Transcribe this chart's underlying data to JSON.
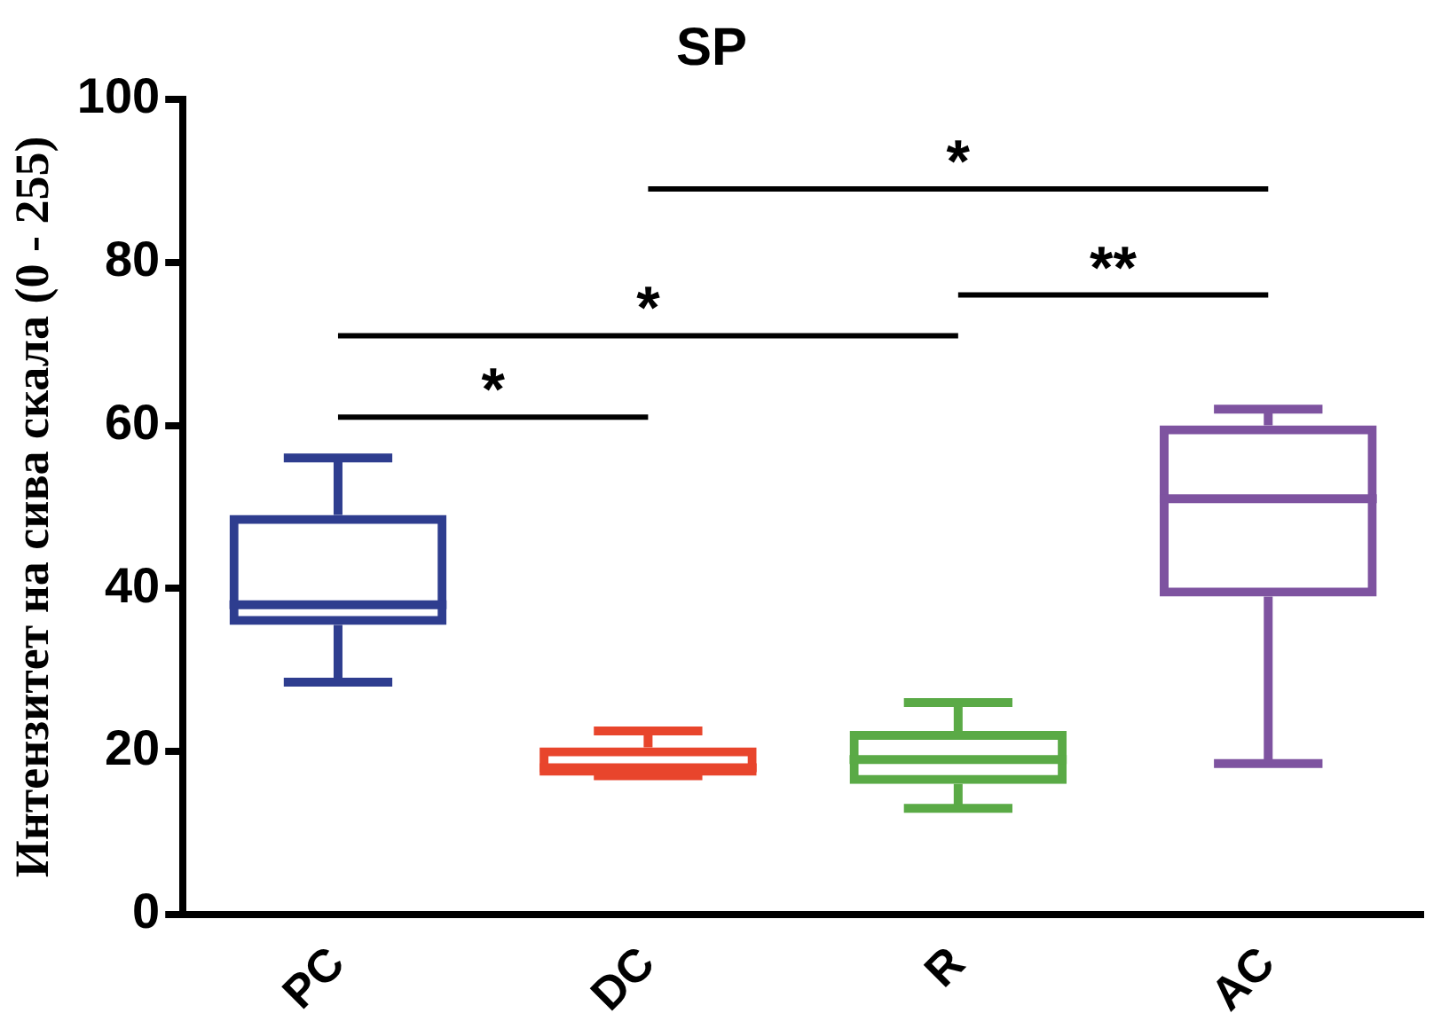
{
  "chart_data": {
    "type": "box",
    "title": "SP",
    "ylabel": "Интензитет на сива скала (0 - 255)",
    "categories": [
      "PC",
      "DC",
      "R",
      "AC"
    ],
    "colors": [
      "#2e3d8f",
      "#e8452c",
      "#5aaa46",
      "#7e53a0"
    ],
    "boxes": [
      {
        "low": 28.5,
        "q1": 35.5,
        "median": 38,
        "q3": 49,
        "high": 56
      },
      {
        "low": 17,
        "q1": 17,
        "median": 18,
        "q3": 20.5,
        "high": 22.5
      },
      {
        "low": 13,
        "q1": 16,
        "median": 19,
        "q3": 22.5,
        "high": 26
      },
      {
        "low": 18.5,
        "q1": 39,
        "median": 51,
        "q3": 60,
        "high": 62
      }
    ],
    "ylim": [
      0,
      100
    ],
    "yticks": [
      0,
      20,
      40,
      60,
      80,
      100
    ],
    "grid": false,
    "legend": false,
    "annotations": [
      "*",
      "*",
      "**",
      "*"
    ]
  }
}
